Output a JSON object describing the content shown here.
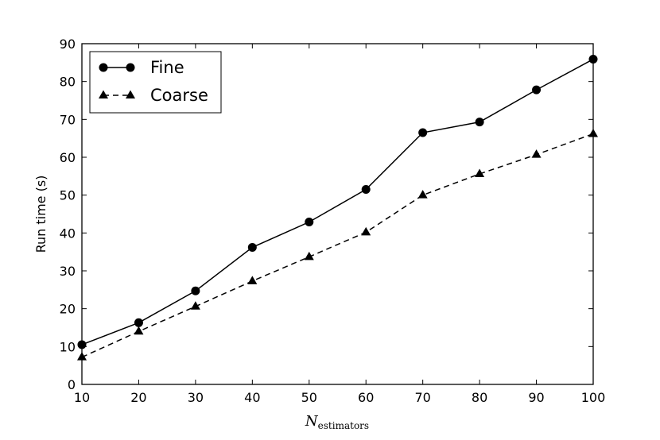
{
  "chart_data": {
    "type": "line",
    "xlabel": {
      "main": "N",
      "subscript": "estimators"
    },
    "ylabel": "Run time (s)",
    "xlim": [
      10,
      100
    ],
    "ylim": [
      0,
      90
    ],
    "xticks": [
      10,
      20,
      30,
      40,
      50,
      60,
      70,
      80,
      90,
      100
    ],
    "yticks": [
      0,
      10,
      20,
      30,
      40,
      50,
      60,
      70,
      80,
      90
    ],
    "grid": false,
    "legend_position": "top-left",
    "x": [
      10,
      20,
      30,
      40,
      50,
      60,
      70,
      80,
      90,
      100
    ],
    "series": [
      {
        "name": "Fine",
        "marker": "circle",
        "line_style": "solid",
        "color": "#000000",
        "values": [
          10.5,
          16.3,
          24.7,
          36.2,
          42.9,
          51.5,
          66.5,
          69.3,
          77.8,
          85.9
        ]
      },
      {
        "name": "Coarse",
        "marker": "triangle",
        "line_style": "dashed",
        "color": "#000000",
        "values": [
          7.2,
          14.0,
          20.6,
          27.3,
          33.7,
          40.2,
          50.0,
          55.6,
          60.7,
          66.2
        ]
      }
    ]
  }
}
